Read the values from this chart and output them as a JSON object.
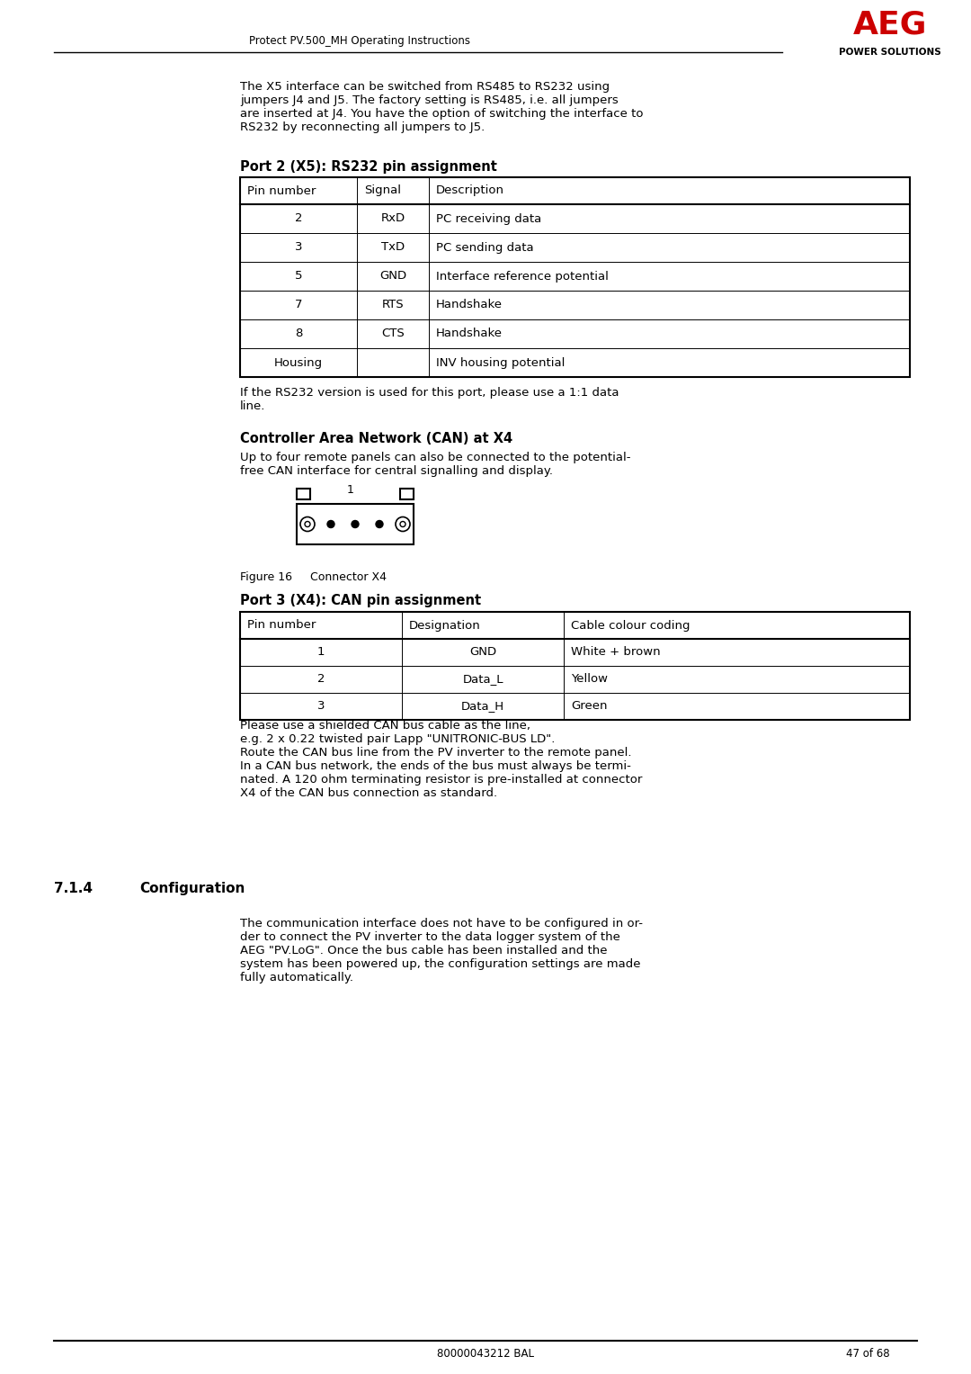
{
  "header_line": "Protect PV.500_MH Operating Instructions",
  "footer_left": "80000043212 BAL",
  "footer_right": "47 of 68",
  "aeg_logo": "AEG",
  "power_solutions": "POWER SOLUTIONS",
  "intro_text": "The X5 interface can be switched from RS485 to RS232 using\njumpers J4 and J5. The factory setting is RS485, i.e. all jumpers\nare inserted at J4. You have the option of switching the interface to\nRS232 by reconnecting all jumpers to J5.",
  "table1_title": "Port 2 (X5): RS232 pin assignment",
  "table1_headers": [
    "Pin number",
    "Signal",
    "Description"
  ],
  "table1_rows": [
    [
      "2",
      "RxD",
      "PC receiving data"
    ],
    [
      "3",
      "TxD",
      "PC sending data"
    ],
    [
      "5",
      "GND",
      "Interface reference potential"
    ],
    [
      "7",
      "RTS",
      "Handshake"
    ],
    [
      "8",
      "CTS",
      "Handshake"
    ],
    [
      "Housing",
      "",
      "INV housing potential"
    ]
  ],
  "note_text": "If the RS232 version is used for this port, please use a 1:1 data\nline.",
  "section2_title": "Controller Area Network (CAN) at X4",
  "section2_text": "Up to four remote panels can also be connected to the potential-\nfree CAN interface for central signalling and display.",
  "figure_caption": "Figure 16     Connector X4",
  "table2_title": "Port 3 (X4): CAN pin assignment",
  "table2_headers": [
    "Pin number",
    "Designation",
    "Cable colour coding"
  ],
  "table2_rows": [
    [
      "1",
      "GND",
      "White + brown"
    ],
    [
      "2",
      "Data_L",
      "Yellow"
    ],
    [
      "3",
      "Data_H",
      "Green"
    ]
  ],
  "note2_text": "Please use a shielded CAN bus cable as the line,\ne.g. 2 x 0.22 twisted pair Lapp \"UNITRONIC-BUS LD\".\nRoute the CAN bus line from the PV inverter to the remote panel.\nIn a CAN bus network, the ends of the bus must always be termi-\nnated. A 120 ohm terminating resistor is pre-installed at connector\nX4 of the CAN bus connection as standard.",
  "section3_number": "7.1.4",
  "section3_title": "Configuration",
  "section3_text": "The communication interface does not have to be configured in or-\nder to connect the PV inverter to the data logger system of the\nAEG \"PV.LoG\". Once the bus cable has been installed and the\nsystem has been powered up, the configuration settings are made\nfully automatically.",
  "bg_color": "#ffffff",
  "text_color": "#000000",
  "red_color": "#cc0000",
  "table_line_color": "#000000",
  "font_family": "DejaVu Sans"
}
